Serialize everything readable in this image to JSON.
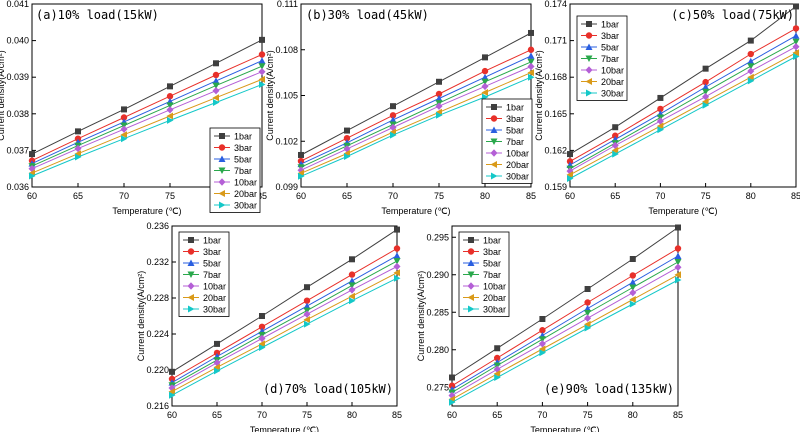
{
  "chart_data": [
    {
      "type": "line",
      "title": "(a)10% load(15kW)",
      "xlabel": "Temperature (℃)",
      "ylabel": "Current density(A/cm²)",
      "xlim": [
        60,
        85
      ],
      "ylim": [
        0.036,
        0.041
      ],
      "x_ticks": [
        60,
        65,
        70,
        75,
        80,
        85
      ],
      "y_ticks": [
        0.036,
        0.037,
        0.038,
        0.039,
        0.04,
        0.041
      ],
      "y_decimals": 3,
      "x": [
        60,
        65,
        70,
        75,
        80,
        85
      ],
      "legend_position": "center-right",
      "series": [
        {
          "name": "1bar",
          "values": [
            0.0369,
            0.03752,
            0.03812,
            0.03875,
            0.03938,
            0.04002
          ]
        },
        {
          "name": "3bar",
          "values": [
            0.03672,
            0.03732,
            0.0379,
            0.03848,
            0.03906,
            0.03962
          ]
        },
        {
          "name": "5bar",
          "values": [
            0.03664,
            0.03722,
            0.03778,
            0.03834,
            0.0389,
            0.03945
          ]
        },
        {
          "name": "7bar",
          "values": [
            0.03657,
            0.03713,
            0.03768,
            0.03823,
            0.03877,
            0.0393
          ]
        },
        {
          "name": "10bar",
          "values": [
            0.0365,
            0.03705,
            0.03758,
            0.03811,
            0.03863,
            0.03915
          ]
        },
        {
          "name": "20bar",
          "values": [
            0.03638,
            0.03691,
            0.03743,
            0.03794,
            0.03844,
            0.03894
          ]
        },
        {
          "name": "30bar",
          "values": [
            0.0363,
            0.03682,
            0.03732,
            0.03782,
            0.03831,
            0.0388
          ]
        }
      ]
    },
    {
      "type": "line",
      "title": "(b)30% load(45kW)",
      "xlabel": "Temperature (℃)",
      "ylabel": "Current density(A/cm²)",
      "xlim": [
        60,
        85
      ],
      "ylim": [
        0.099,
        0.111
      ],
      "x_ticks": [
        60,
        65,
        70,
        75,
        80,
        85
      ],
      "y_ticks": [
        0.099,
        0.102,
        0.105,
        0.108,
        0.111
      ],
      "y_decimals": 3,
      "x": [
        60,
        65,
        70,
        75,
        80,
        85
      ],
      "legend_position": "bottom-right",
      "series": [
        {
          "name": "1bar",
          "values": [
            0.1011,
            0.1027,
            0.1043,
            0.1059,
            0.1075,
            0.1091
          ]
        },
        {
          "name": "3bar",
          "values": [
            0.1007,
            0.1022,
            0.1037,
            0.1051,
            0.1066,
            0.108
          ]
        },
        {
          "name": "5bar",
          "values": [
            0.1005,
            0.1019,
            0.1034,
            0.1048,
            0.1062,
            0.1076
          ]
        },
        {
          "name": "7bar",
          "values": [
            0.1003,
            0.1017,
            0.1031,
            0.1045,
            0.1059,
            0.1072
          ]
        },
        {
          "name": "10bar",
          "values": [
            0.1001,
            0.1015,
            0.1029,
            0.1043,
            0.1056,
            0.1069
          ]
        },
        {
          "name": "20bar",
          "values": [
            0.0999,
            0.1012,
            0.1026,
            0.1039,
            0.1052,
            0.1065
          ]
        },
        {
          "name": "30bar",
          "values": [
            0.0997,
            0.101,
            0.1024,
            0.1037,
            0.1049,
            0.1062
          ]
        }
      ]
    },
    {
      "type": "line",
      "title": "(c)50% load(75kW)",
      "xlabel": "Temperature (℃)",
      "ylabel": "Current density(A/cm²)",
      "xlim": [
        60,
        85
      ],
      "ylim": [
        0.159,
        0.174
      ],
      "x_ticks": [
        60,
        65,
        70,
        75,
        80,
        85
      ],
      "y_ticks": [
        0.159,
        0.162,
        0.165,
        0.168,
        0.171,
        0.174
      ],
      "y_decimals": 3,
      "x": [
        60,
        65,
        70,
        75,
        80,
        85
      ],
      "legend_position": "top-left",
      "series": [
        {
          "name": "1bar",
          "values": [
            0.1617,
            0.1639,
            0.1663,
            0.1687,
            0.171,
            0.1738
          ]
        },
        {
          "name": "3bar",
          "values": [
            0.1611,
            0.1632,
            0.1654,
            0.1676,
            0.1699,
            0.172
          ]
        },
        {
          "name": "5bar",
          "values": [
            0.1608,
            0.1629,
            0.165,
            0.1672,
            0.1693,
            0.1714
          ]
        },
        {
          "name": "7bar",
          "values": [
            0.1605,
            0.1626,
            0.1647,
            0.1668,
            0.1689,
            0.1709
          ]
        },
        {
          "name": "10bar",
          "values": [
            0.1603,
            0.1624,
            0.1644,
            0.1664,
            0.1685,
            0.1705
          ]
        },
        {
          "name": "20bar",
          "values": [
            0.16,
            0.162,
            0.164,
            0.166,
            0.168,
            0.17
          ]
        },
        {
          "name": "30bar",
          "values": [
            0.1597,
            0.1617,
            0.1637,
            0.1657,
            0.1677,
            0.1697
          ]
        }
      ]
    },
    {
      "type": "line",
      "title": "(d)70% load(105kW)",
      "xlabel": "Temperature (℃)",
      "ylabel": "Current density(A/cm²)",
      "xlim": [
        60,
        85
      ],
      "ylim": [
        0.216,
        0.236
      ],
      "x_ticks": [
        60,
        65,
        70,
        75,
        80,
        85
      ],
      "y_ticks": [
        0.216,
        0.22,
        0.224,
        0.228,
        0.232,
        0.236
      ],
      "y_decimals": 3,
      "x": [
        60,
        65,
        70,
        75,
        80,
        85
      ],
      "legend_position": "top-left",
      "series": [
        {
          "name": "1bar",
          "values": [
            0.2198,
            0.2229,
            0.226,
            0.2292,
            0.2323,
            0.2356
          ]
        },
        {
          "name": "3bar",
          "values": [
            0.219,
            0.2219,
            0.2248,
            0.2277,
            0.2306,
            0.2335
          ]
        },
        {
          "name": "5bar",
          "values": [
            0.2186,
            0.2215,
            0.2243,
            0.2271,
            0.2299,
            0.2327
          ]
        },
        {
          "name": "7bar",
          "values": [
            0.2183,
            0.2211,
            0.2239,
            0.2266,
            0.2294,
            0.2321
          ]
        },
        {
          "name": "10bar",
          "values": [
            0.218,
            0.2208,
            0.2235,
            0.2262,
            0.2289,
            0.2315
          ]
        },
        {
          "name": "20bar",
          "values": [
            0.2176,
            0.2203,
            0.2229,
            0.2256,
            0.2282,
            0.2308
          ]
        },
        {
          "name": "30bar",
          "values": [
            0.2172,
            0.2199,
            0.2225,
            0.2251,
            0.2277,
            0.2302
          ]
        }
      ]
    },
    {
      "type": "line",
      "title": "(e)90% load(135kW)",
      "xlabel": "Temperature (℃)",
      "ylabel": "Current density(A/cm²)",
      "xlim": [
        60,
        85
      ],
      "ylim": [
        0.2725,
        0.2965
      ],
      "x_ticks": [
        60,
        65,
        70,
        75,
        80,
        85
      ],
      "y_ticks": [
        0.275,
        0.28,
        0.285,
        0.29,
        0.295
      ],
      "y_decimals": 3,
      "x": [
        60,
        65,
        70,
        75,
        80,
        85
      ],
      "legend_position": "top-left",
      "series": [
        {
          "name": "1bar",
          "values": [
            0.2763,
            0.2802,
            0.2841,
            0.2881,
            0.2921,
            0.2963
          ]
        },
        {
          "name": "3bar",
          "values": [
            0.2752,
            0.2789,
            0.2826,
            0.2863,
            0.2899,
            0.2935
          ]
        },
        {
          "name": "5bar",
          "values": [
            0.2747,
            0.2783,
            0.2819,
            0.2855,
            0.289,
            0.2925
          ]
        },
        {
          "name": "7bar",
          "values": [
            0.2743,
            0.2779,
            0.2814,
            0.2849,
            0.2883,
            0.2917
          ]
        },
        {
          "name": "10bar",
          "values": [
            0.2739,
            0.2774,
            0.2808,
            0.2842,
            0.2876,
            0.291
          ]
        },
        {
          "name": "20bar",
          "values": [
            0.2734,
            0.2768,
            0.2801,
            0.2834,
            0.2867,
            0.29
          ]
        },
        {
          "name": "30bar",
          "values": [
            0.273,
            0.2763,
            0.2796,
            0.2829,
            0.2861,
            0.2893
          ]
        }
      ]
    }
  ],
  "series_style": [
    {
      "name": "1bar",
      "color": "#3f3f3f",
      "marker": "square"
    },
    {
      "name": "3bar",
      "color": "#e8302a",
      "marker": "circle"
    },
    {
      "name": "5bar",
      "color": "#2a5fe0",
      "marker": "triangle-up"
    },
    {
      "name": "7bar",
      "color": "#2aa84c",
      "marker": "triangle-down"
    },
    {
      "name": "10bar",
      "color": "#b45fd6",
      "marker": "diamond"
    },
    {
      "name": "20bar",
      "color": "#d99a1a",
      "marker": "triangle-left"
    },
    {
      "name": "30bar",
      "color": "#14c8c8",
      "marker": "triangle-right"
    }
  ]
}
